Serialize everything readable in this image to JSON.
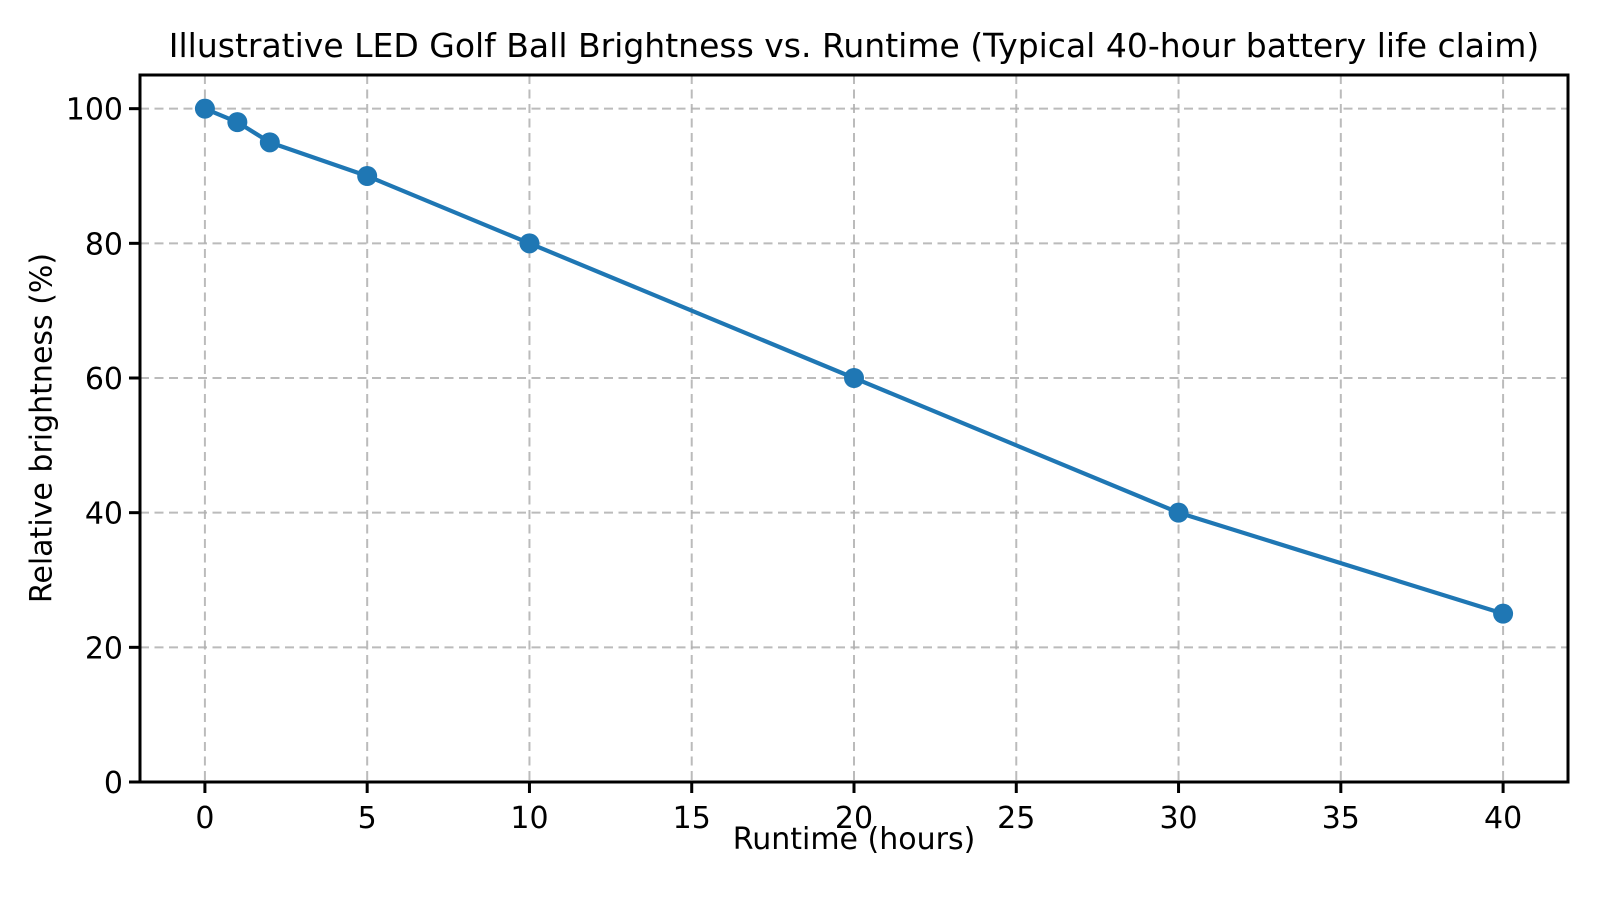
{
  "chart_data": {
    "type": "line",
    "title": "Illustrative LED Golf Ball Brightness vs. Runtime (Typical 40-hour battery life claim)",
    "xlabel": "Runtime (hours)",
    "ylabel": "Relative brightness (%)",
    "x": [
      0,
      1,
      2,
      5,
      10,
      20,
      30,
      40
    ],
    "y": [
      100,
      98,
      95,
      90,
      80,
      60,
      40,
      25
    ],
    "xticks": [
      0,
      5,
      10,
      15,
      20,
      25,
      30,
      35,
      40
    ],
    "yticks": [
      0,
      20,
      40,
      60,
      80,
      100
    ],
    "xlim": [
      -2,
      42
    ],
    "ylim": [
      0,
      105
    ],
    "grid": true,
    "grid_style": "dashed",
    "legend_position": "none",
    "line_color": "#1f77b4",
    "marker": "circle",
    "marker_color": "#1f77b4",
    "grid_color": "#b0b0b0",
    "axis_color": "#000000",
    "background_color": "#ffffff"
  }
}
